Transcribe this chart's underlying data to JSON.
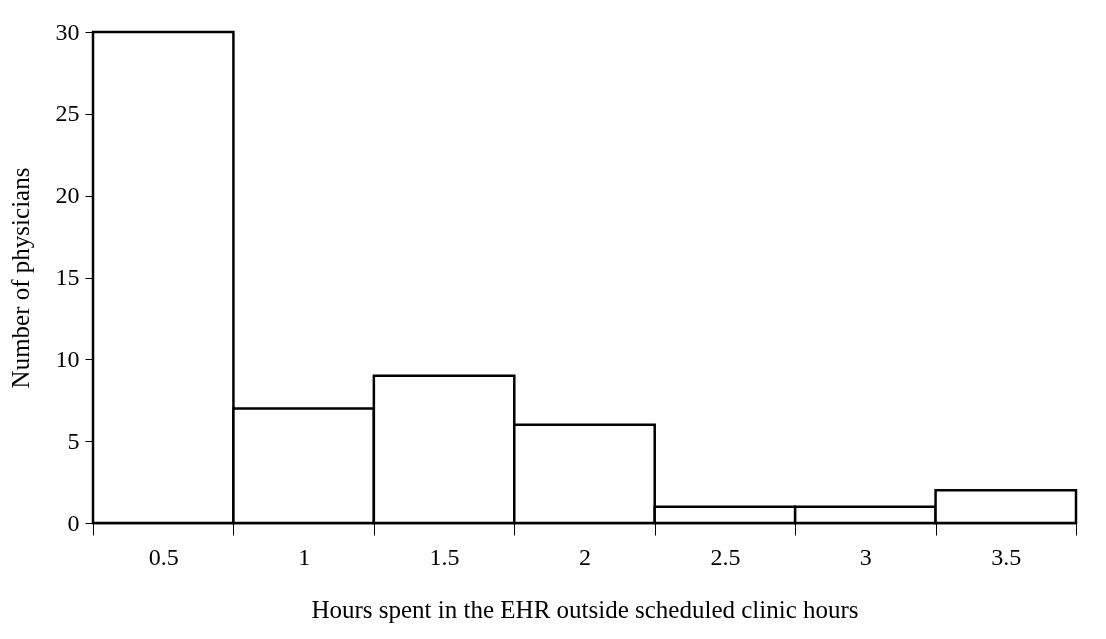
{
  "chart_data": {
    "type": "bar",
    "xlabel": "Hours spent in the EHR outside scheduled clinic hours",
    "ylabel": "Number of physicians",
    "categories": [
      "0.5",
      "1",
      "1.5",
      "2",
      "2.5",
      "3",
      "3.5"
    ],
    "values": [
      30,
      7,
      9,
      6,
      1,
      1,
      2
    ],
    "color": "#ffffff",
    "ylim": [
      0,
      30
    ],
    "yticks": [
      0,
      5,
      10,
      15,
      20,
      25,
      30
    ],
    "grid": false
  }
}
